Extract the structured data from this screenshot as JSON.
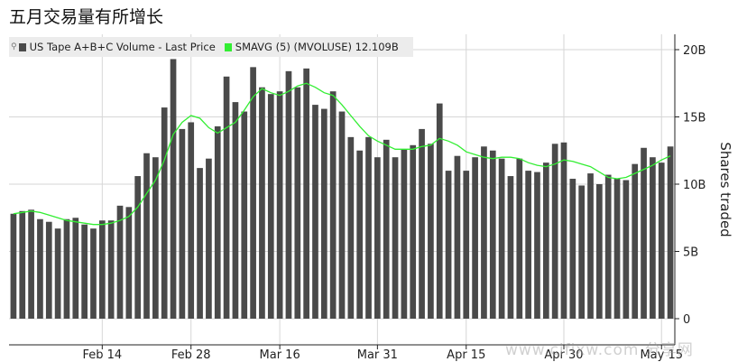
{
  "title": "五月交易量有所增长",
  "legend": {
    "pin_icon": "pin-icon",
    "volume": {
      "label": "US Tape A+B+C Volume - Last Price",
      "color": "#4a4a4a"
    },
    "smavg": {
      "label": "SMAVG (5)  (MVOLUSE) 12.109B",
      "color": "#33ee33"
    }
  },
  "watermark": "www.cifixw.com  分享网",
  "chart_data": {
    "type": "bar",
    "ylabel": "Shares traded",
    "ylim": [
      0,
      21
    ],
    "yticks": [
      0,
      5,
      10,
      15,
      20
    ],
    "ytick_labels": [
      "0",
      "5B",
      "10B",
      "15B",
      "20B"
    ],
    "xtick_labels": [
      {
        "label": "Feb 14",
        "index": 10
      },
      {
        "label": "Feb 28",
        "index": 20
      },
      {
        "label": "Mar 16",
        "index": 30
      },
      {
        "label": "Mar 31",
        "index": 41
      },
      {
        "label": "Apr 15",
        "index": 51
      },
      {
        "label": "Apr 30",
        "index": 62
      },
      {
        "label": "May 15",
        "index": 73
      }
    ],
    "series": [
      {
        "name": "US Tape A+B+C Volume - Last Price",
        "type": "bar",
        "values": [
          7.8,
          8.0,
          8.1,
          7.4,
          7.2,
          6.7,
          7.4,
          7.5,
          7.0,
          6.7,
          7.3,
          7.3,
          8.4,
          8.3,
          10.6,
          12.3,
          12.0,
          15.7,
          19.3,
          14.1,
          14.6,
          11.2,
          11.9,
          14.3,
          18.0,
          16.1,
          15.4,
          18.7,
          17.2,
          16.7,
          16.9,
          18.4,
          17.2,
          18.6,
          15.9,
          15.6,
          16.9,
          15.4,
          13.5,
          12.5,
          13.5,
          12.0,
          13.3,
          12.0,
          12.6,
          12.9,
          14.1,
          13.0,
          16.0,
          11.0,
          12.1,
          11.0,
          12.0,
          12.8,
          12.5,
          11.9,
          10.6,
          11.9,
          11.0,
          10.9,
          11.6,
          13.0,
          13.1,
          10.4,
          9.9,
          10.8,
          10.0,
          10.7,
          10.4,
          10.3,
          11.5,
          12.7,
          12.0,
          11.6,
          12.8
        ],
        "color": "#4a4a4a"
      },
      {
        "name": "SMAVG (5) (MVOLUSE) 12.109B",
        "type": "line",
        "values": [
          7.8,
          7.9,
          8.0,
          7.9,
          7.7,
          7.5,
          7.3,
          7.2,
          7.1,
          7.0,
          7.0,
          7.1,
          7.3,
          7.6,
          8.3,
          9.3,
          10.3,
          11.8,
          13.7,
          14.6,
          15.1,
          14.9,
          14.2,
          13.8,
          14.2,
          14.6,
          15.5,
          16.5,
          17.1,
          16.8,
          16.6,
          16.9,
          17.3,
          17.5,
          17.2,
          16.8,
          16.6,
          15.9,
          15.1,
          14.3,
          13.6,
          13.2,
          12.9,
          12.6,
          12.6,
          12.6,
          12.8,
          12.9,
          13.4,
          13.2,
          12.9,
          12.4,
          12.2,
          12.0,
          11.9,
          12.0,
          12.0,
          11.9,
          11.6,
          11.4,
          11.3,
          11.5,
          11.8,
          11.7,
          11.5,
          11.3,
          10.9,
          10.5,
          10.4,
          10.5,
          10.8,
          11.1,
          11.4,
          11.8,
          12.1
        ],
        "color": "#33ee33"
      }
    ]
  }
}
